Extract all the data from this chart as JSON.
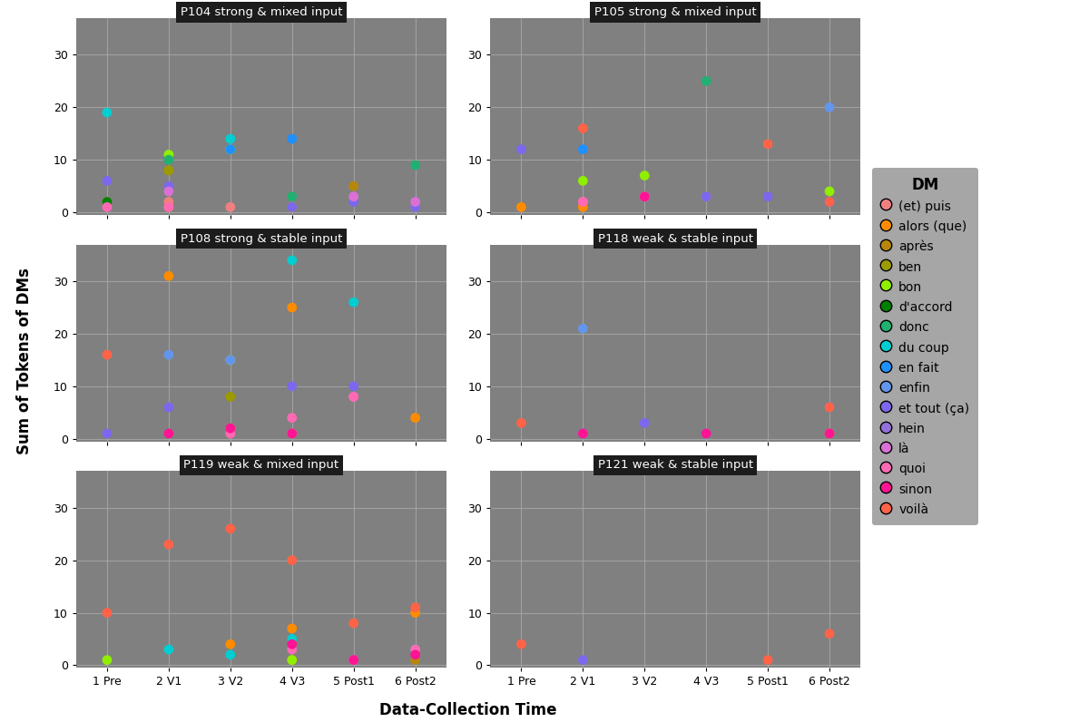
{
  "color_map": {
    "(et) puis": "#F08080",
    "alors (que)": "#FF8C00",
    "après": "#B8860B",
    "ben": "#9B9B00",
    "bon": "#90EE00",
    "d'accord": "#008000",
    "donc": "#20B070",
    "du coup": "#00CED1",
    "en fait": "#1E90FF",
    "enfin": "#6495ED",
    "et tout (ça)": "#7B68EE",
    "hein": "#9370DB",
    "là": "#DA70D6",
    "quoi": "#FF69B4",
    "sinon": "#FF1493",
    "voilà": "#FF6347"
  },
  "dm_order": [
    "(et) puis",
    "alors (que)",
    "après",
    "ben",
    "bon",
    "d'accord",
    "donc",
    "du coup",
    "en fait",
    "enfin",
    "et tout (ça)",
    "hein",
    "là",
    "quoi",
    "sinon",
    "voilà"
  ],
  "x_labels": [
    "1 Pre",
    "2 V1",
    "3 V2",
    "4 V3",
    "5 Post1",
    "6 Post2"
  ],
  "x_values": [
    1,
    2,
    3,
    4,
    5,
    6
  ],
  "subplots": [
    {
      "title": "P104 strong & mixed input",
      "data": {
        "(et) puis": [
          2,
          2,
          1,
          null,
          null,
          1
        ],
        "alors (que)": [
          null,
          1,
          null,
          1,
          null,
          null
        ],
        "après": [
          null,
          8,
          null,
          null,
          5,
          null
        ],
        "ben": [
          null,
          8,
          null,
          null,
          null,
          null
        ],
        "bon": [
          null,
          11,
          12,
          null,
          null,
          null
        ],
        "d'accord": [
          2,
          null,
          null,
          null,
          null,
          null
        ],
        "donc": [
          null,
          10,
          null,
          3,
          null,
          9
        ],
        "du coup": [
          19,
          null,
          14,
          null,
          null,
          null
        ],
        "en fait": [
          null,
          null,
          12,
          14,
          null,
          null
        ],
        "enfin": [
          null,
          null,
          null,
          null,
          null,
          null
        ],
        "et tout (ça)": [
          6,
          5,
          null,
          1,
          2,
          1
        ],
        "hein": [
          null,
          null,
          null,
          null,
          null,
          null
        ],
        "là": [
          null,
          4,
          null,
          null,
          3,
          2
        ],
        "quoi": [
          1,
          1,
          null,
          null,
          null,
          null
        ],
        "sinon": [
          null,
          null,
          null,
          null,
          null,
          null
        ],
        "voilà": [
          null,
          null,
          null,
          null,
          null,
          null
        ]
      }
    },
    {
      "title": "P105 strong & mixed input",
      "data": {
        "(et) puis": [
          null,
          2,
          3,
          3,
          null,
          null
        ],
        "alors (que)": [
          1,
          1,
          null,
          null,
          null,
          null
        ],
        "après": [
          null,
          null,
          null,
          null,
          null,
          null
        ],
        "ben": [
          null,
          null,
          null,
          null,
          null,
          null
        ],
        "bon": [
          null,
          6,
          7,
          null,
          null,
          4
        ],
        "d'accord": [
          null,
          null,
          null,
          null,
          null,
          null
        ],
        "donc": [
          null,
          null,
          null,
          25,
          null,
          null
        ],
        "du coup": [
          null,
          null,
          null,
          null,
          null,
          null
        ],
        "en fait": [
          null,
          12,
          null,
          null,
          null,
          null
        ],
        "enfin": [
          null,
          null,
          null,
          null,
          null,
          20
        ],
        "et tout (ça)": [
          12,
          null,
          3,
          3,
          3,
          2
        ],
        "hein": [
          null,
          null,
          null,
          null,
          null,
          null
        ],
        "là": [
          null,
          null,
          null,
          null,
          null,
          null
        ],
        "quoi": [
          null,
          2,
          3,
          null,
          null,
          null
        ],
        "sinon": [
          null,
          null,
          3,
          null,
          null,
          null
        ],
        "voilà": [
          null,
          16,
          null,
          null,
          13,
          2
        ]
      }
    },
    {
      "title": "P108 strong & stable input",
      "data": {
        "(et) puis": [
          null,
          null,
          2,
          1,
          null,
          null
        ],
        "alors (que)": [
          null,
          31,
          null,
          25,
          null,
          4
        ],
        "après": [
          null,
          null,
          null,
          null,
          null,
          null
        ],
        "ben": [
          null,
          null,
          8,
          null,
          null,
          null
        ],
        "bon": [
          null,
          null,
          15,
          null,
          null,
          null
        ],
        "d'accord": [
          null,
          null,
          null,
          null,
          null,
          null
        ],
        "donc": [
          null,
          null,
          null,
          null,
          null,
          null
        ],
        "du coup": [
          null,
          null,
          null,
          34,
          26,
          null
        ],
        "en fait": [
          null,
          null,
          null,
          null,
          null,
          null
        ],
        "enfin": [
          null,
          16,
          15,
          null,
          null,
          null
        ],
        "et tout (ça)": [
          1,
          6,
          null,
          10,
          10,
          null
        ],
        "hein": [
          null,
          null,
          null,
          null,
          null,
          null
        ],
        "là": [
          null,
          null,
          null,
          null,
          8,
          null
        ],
        "quoi": [
          null,
          null,
          1,
          4,
          8,
          null
        ],
        "sinon": [
          null,
          1,
          2,
          1,
          null,
          null
        ],
        "voilà": [
          16,
          null,
          null,
          null,
          null,
          null
        ]
      }
    },
    {
      "title": "P118 weak & stable input",
      "data": {
        "(et) puis": [
          null,
          null,
          null,
          null,
          null,
          null
        ],
        "alors (que)": [
          null,
          null,
          null,
          null,
          null,
          1
        ],
        "après": [
          null,
          null,
          null,
          null,
          null,
          null
        ],
        "ben": [
          null,
          null,
          null,
          null,
          null,
          null
        ],
        "bon": [
          null,
          null,
          null,
          null,
          null,
          null
        ],
        "d'accord": [
          null,
          null,
          null,
          null,
          null,
          null
        ],
        "donc": [
          null,
          null,
          null,
          null,
          null,
          null
        ],
        "du coup": [
          null,
          null,
          null,
          null,
          null,
          null
        ],
        "en fait": [
          null,
          null,
          null,
          null,
          null,
          null
        ],
        "enfin": [
          null,
          21,
          null,
          null,
          null,
          null
        ],
        "et tout (ça)": [
          null,
          1,
          3,
          1,
          null,
          6
        ],
        "hein": [
          null,
          null,
          null,
          null,
          null,
          null
        ],
        "là": [
          null,
          null,
          null,
          null,
          null,
          null
        ],
        "quoi": [
          null,
          null,
          null,
          null,
          null,
          null
        ],
        "sinon": [
          null,
          1,
          null,
          1,
          null,
          1
        ],
        "voilà": [
          3,
          null,
          null,
          null,
          null,
          6
        ]
      }
    },
    {
      "title": "P119 weak & mixed input",
      "data": {
        "(et) puis": [
          null,
          null,
          null,
          null,
          null,
          null
        ],
        "alors (que)": [
          null,
          null,
          4,
          7,
          null,
          10
        ],
        "après": [
          null,
          null,
          null,
          1,
          null,
          1
        ],
        "ben": [
          null,
          null,
          null,
          1,
          null,
          null
        ],
        "bon": [
          1,
          null,
          null,
          1,
          null,
          null
        ],
        "d'accord": [
          null,
          null,
          null,
          null,
          null,
          null
        ],
        "donc": [
          null,
          null,
          null,
          null,
          null,
          null
        ],
        "du coup": [
          null,
          3,
          2,
          5,
          null,
          3
        ],
        "en fait": [
          null,
          null,
          null,
          null,
          null,
          null
        ],
        "enfin": [
          null,
          null,
          null,
          null,
          null,
          null
        ],
        "et tout (ça)": [
          null,
          null,
          null,
          null,
          null,
          null
        ],
        "hein": [
          null,
          null,
          null,
          null,
          null,
          null
        ],
        "là": [
          null,
          null,
          null,
          null,
          null,
          null
        ],
        "quoi": [
          null,
          null,
          null,
          3,
          1,
          3
        ],
        "sinon": [
          null,
          null,
          null,
          4,
          1,
          2
        ],
        "voilà": [
          10,
          23,
          26,
          20,
          8,
          11
        ]
      }
    },
    {
      "title": "P121 weak & stable input",
      "data": {
        "(et) puis": [
          null,
          null,
          null,
          null,
          null,
          null
        ],
        "alors (que)": [
          null,
          null,
          null,
          null,
          null,
          null
        ],
        "après": [
          null,
          null,
          null,
          null,
          null,
          null
        ],
        "ben": [
          null,
          null,
          null,
          null,
          null,
          null
        ],
        "bon": [
          null,
          null,
          null,
          null,
          null,
          null
        ],
        "d'accord": [
          null,
          null,
          null,
          null,
          null,
          null
        ],
        "donc": [
          null,
          null,
          null,
          null,
          null,
          null
        ],
        "du coup": [
          null,
          null,
          null,
          null,
          null,
          null
        ],
        "en fait": [
          null,
          null,
          null,
          null,
          null,
          null
        ],
        "enfin": [
          null,
          null,
          null,
          null,
          null,
          null
        ],
        "et tout (ça)": [
          null,
          1,
          null,
          null,
          null,
          null
        ],
        "hein": [
          null,
          null,
          null,
          null,
          null,
          null
        ],
        "là": [
          null,
          null,
          null,
          null,
          null,
          null
        ],
        "quoi": [
          null,
          null,
          null,
          null,
          null,
          null
        ],
        "sinon": [
          null,
          null,
          null,
          null,
          null,
          null
        ],
        "voilà": [
          4,
          null,
          null,
          null,
          1,
          6
        ]
      }
    }
  ],
  "xlabel": "Data-Collection Time",
  "ylabel": "Sum of Tokens of DMs",
  "panel_bg": "#808080",
  "title_bg": "#1c1c1c",
  "title_color": "white",
  "fig_bg": "#ffffff",
  "grid_color": "#aaaaaa",
  "ylim": [
    -0.5,
    37
  ],
  "yticks": [
    0,
    10,
    20,
    30
  ],
  "marker_size": 60
}
